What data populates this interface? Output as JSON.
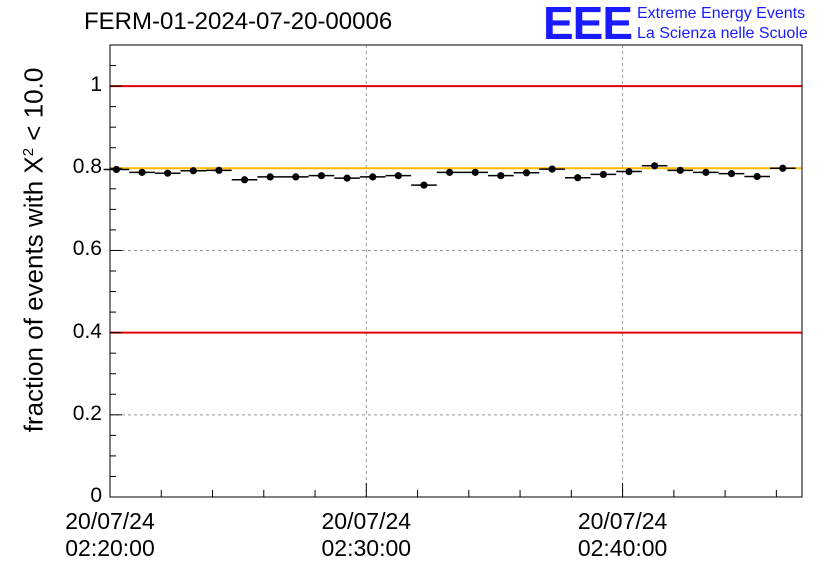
{
  "header": {
    "run_id": "FERM-01-2024-07-20-00006",
    "logo_text": "EEE",
    "logo_line1": "Extreme Energy Events",
    "logo_line2": "La Scienza nelle Scuole"
  },
  "chart_data": {
    "type": "scatter",
    "title": "FERM-01-2024-07-20-00006",
    "ylabel_main": "fraction of events with X",
    "ylabel_sup": "2",
    "ylabel_tail": " < 10.0",
    "xlabel": "",
    "ylim": [
      0,
      1.1
    ],
    "x_ticks": [
      {
        "date": "20/07/24",
        "time": "02:20:00"
      },
      {
        "date": "20/07/24",
        "time": "02:30:00"
      },
      {
        "date": "20/07/24",
        "time": "02:40:00"
      }
    ],
    "y_ticks": [
      "0",
      "0.2",
      "0.4",
      "0.6",
      "0.8",
      "1"
    ],
    "y_tick_values": [
      0,
      0.2,
      0.4,
      0.6,
      0.8,
      1.0
    ],
    "grid": true,
    "reference_lines": [
      {
        "y": 1.0,
        "color": "#e00000"
      },
      {
        "y": 0.4,
        "color": "#e00000"
      },
      {
        "y": 0.8,
        "color": "#ffb800"
      }
    ],
    "x": [
      "02:20:15",
      "02:21:15",
      "02:22:15",
      "02:23:15",
      "02:24:15",
      "02:25:15",
      "02:26:15",
      "02:27:15",
      "02:28:15",
      "02:29:15",
      "02:30:15",
      "02:31:15",
      "02:32:15",
      "02:33:15",
      "02:34:15",
      "02:35:15",
      "02:36:15",
      "02:37:15",
      "02:38:15",
      "02:39:15",
      "02:40:15",
      "02:41:15",
      "02:42:15",
      "02:43:15",
      "02:44:15",
      "02:45:15",
      "02:46:15"
    ],
    "values": [
      0.797,
      0.79,
      0.788,
      0.794,
      0.795,
      0.772,
      0.779,
      0.779,
      0.782,
      0.776,
      0.779,
      0.782,
      0.759,
      0.79,
      0.79,
      0.782,
      0.789,
      0.798,
      0.777,
      0.785,
      0.792,
      0.806,
      0.795,
      0.79,
      0.787,
      0.78,
      0.8
    ],
    "bin_width_minutes": 1,
    "x_start": "02:20:00",
    "x_end": "02:47:00"
  }
}
